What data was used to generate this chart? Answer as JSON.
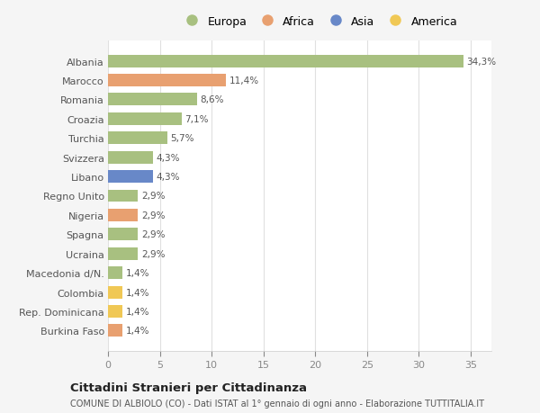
{
  "countries": [
    "Albania",
    "Marocco",
    "Romania",
    "Croazia",
    "Turchia",
    "Svizzera",
    "Libano",
    "Regno Unito",
    "Nigeria",
    "Spagna",
    "Ucraina",
    "Macedonia d/N.",
    "Colombia",
    "Rep. Dominicana",
    "Burkina Faso"
  ],
  "values": [
    34.3,
    11.4,
    8.6,
    7.1,
    5.7,
    4.3,
    4.3,
    2.9,
    2.9,
    2.9,
    2.9,
    1.4,
    1.4,
    1.4,
    1.4
  ],
  "labels": [
    "34,3%",
    "11,4%",
    "8,6%",
    "7,1%",
    "5,7%",
    "4,3%",
    "4,3%",
    "2,9%",
    "2,9%",
    "2,9%",
    "2,9%",
    "1,4%",
    "1,4%",
    "1,4%",
    "1,4%"
  ],
  "colors": [
    "#a8c080",
    "#e8a070",
    "#a8c080",
    "#a8c080",
    "#a8c080",
    "#a8c080",
    "#6888c8",
    "#a8c080",
    "#e8a070",
    "#a8c080",
    "#a8c080",
    "#a8c080",
    "#f0c855",
    "#f0c855",
    "#e8a070"
  ],
  "legend_labels": [
    "Europa",
    "Africa",
    "Asia",
    "America"
  ],
  "legend_colors": [
    "#a8c080",
    "#e8a070",
    "#6888c8",
    "#f0c855"
  ],
  "title": "Cittadini Stranieri per Cittadinanza",
  "subtitle": "COMUNE DI ALBIOLO (CO) - Dati ISTAT al 1° gennaio di ogni anno - Elaborazione TUTTITALIA.IT",
  "xlim": [
    0,
    37
  ],
  "xticks": [
    0,
    5,
    10,
    15,
    20,
    25,
    30,
    35
  ],
  "background_color": "#f5f5f5",
  "bar_background": "#ffffff",
  "grid_color": "#e0e0e0"
}
